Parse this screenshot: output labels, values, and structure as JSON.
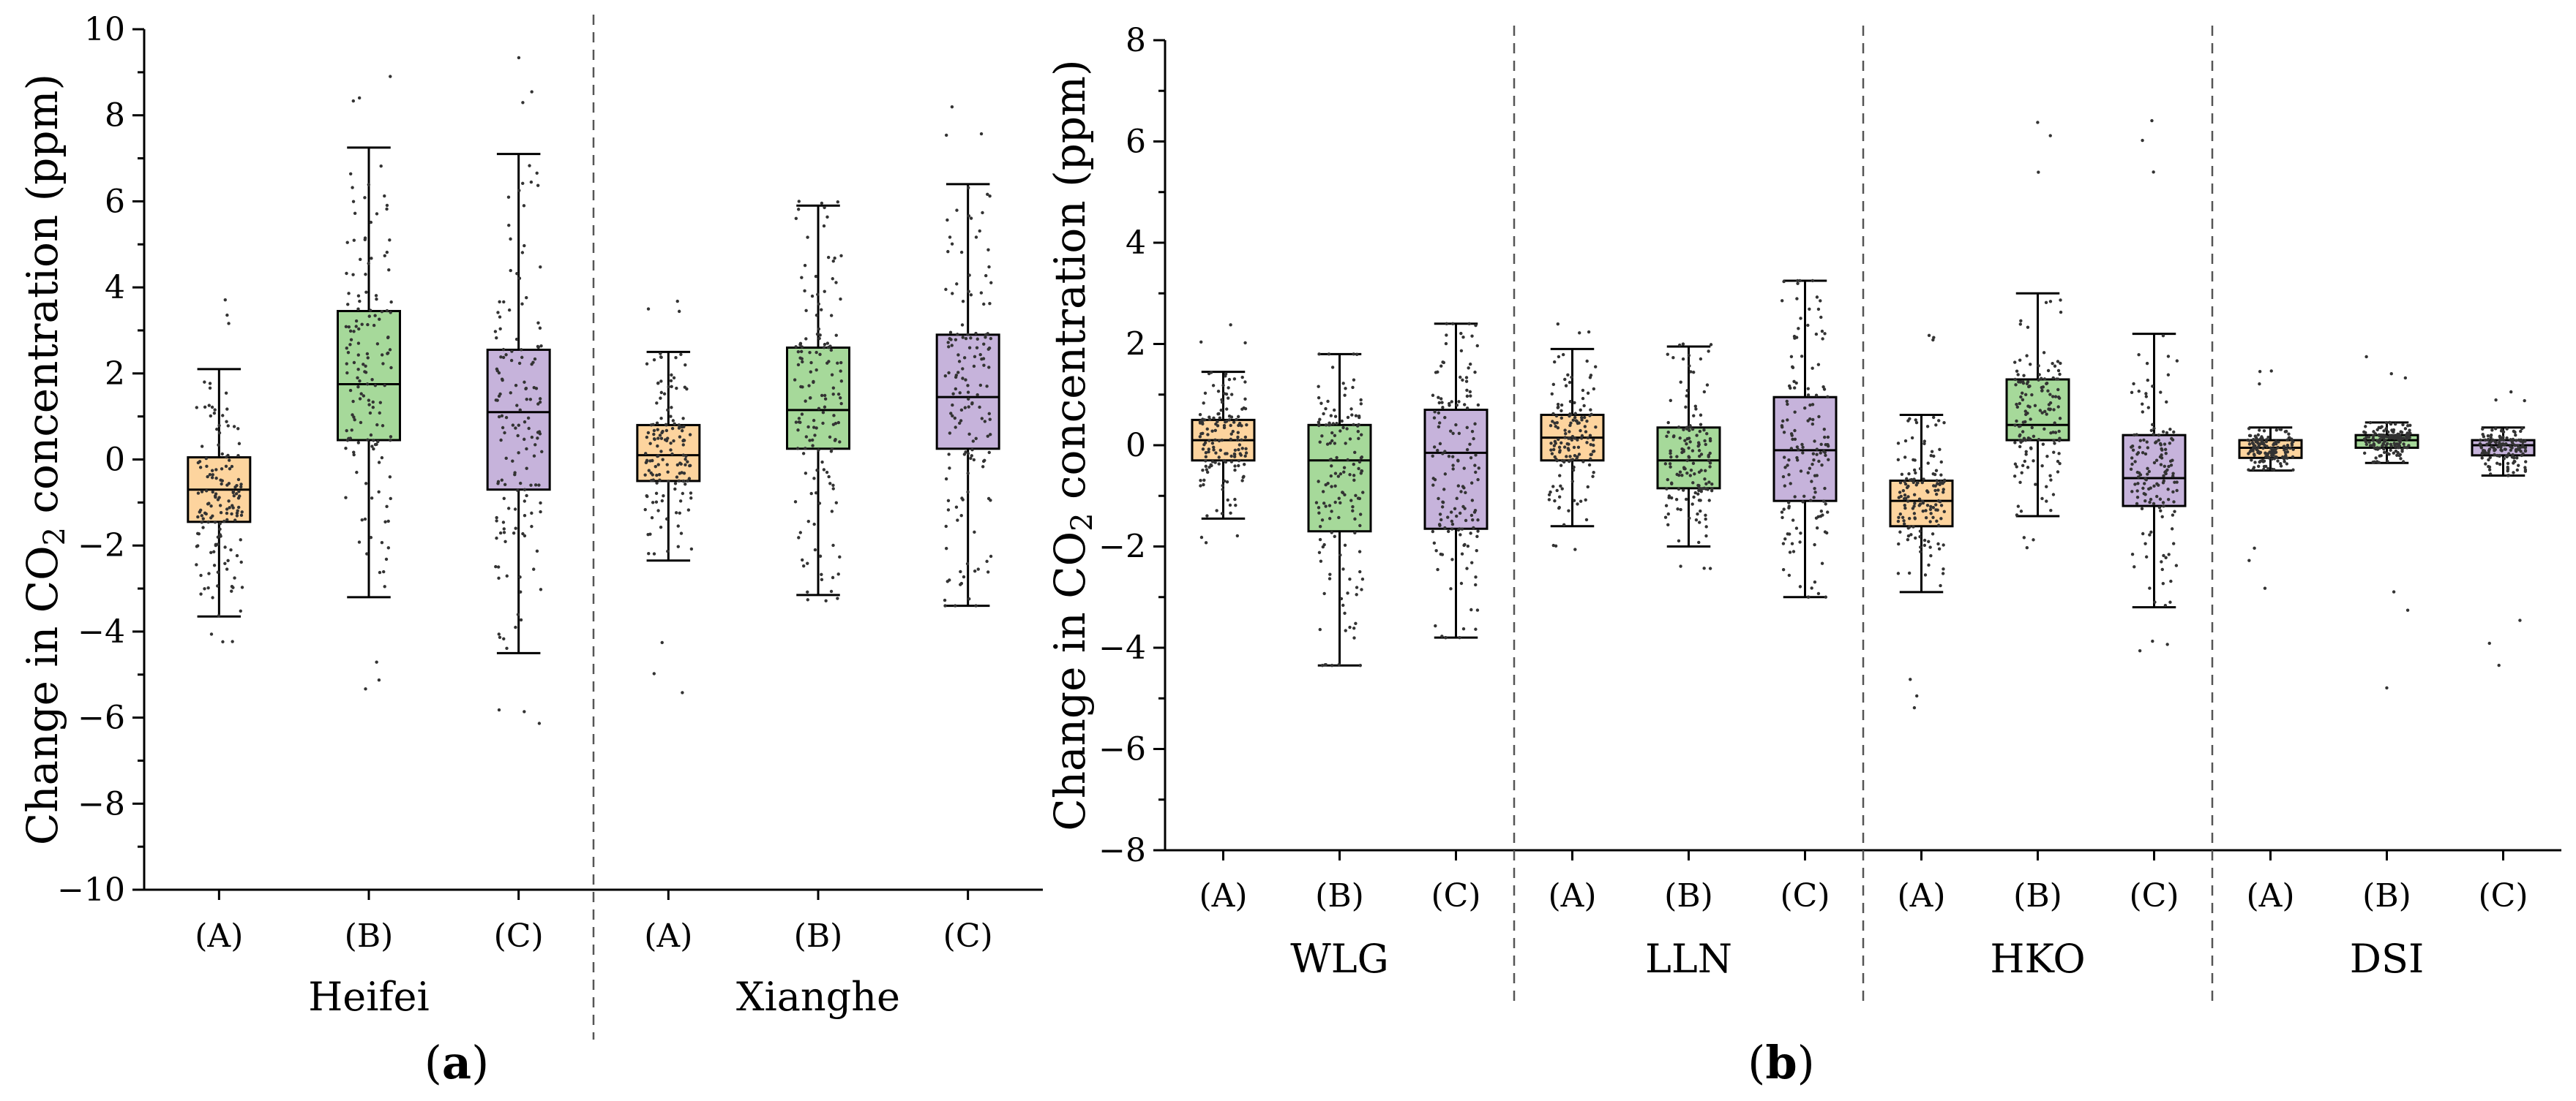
{
  "colors": {
    "A": "#fdd49e",
    "B": "#a6d99a",
    "C": "#c6b3db",
    "outline": "#000000",
    "divider": "#555555",
    "points": "#333333"
  },
  "chart_data": [
    {
      "type": "box",
      "panel_label": "(a)",
      "panel_letter": "a",
      "ylabel": "Change in CO₂ concentration (ppm)",
      "ylabel_parts": {
        "pre": "Change in CO",
        "sub": "2",
        "post": " concentration (ppm)"
      },
      "ylim": [
        -10,
        10
      ],
      "yticks": [
        -10,
        -8,
        -6,
        -4,
        -2,
        0,
        2,
        4,
        6,
        8,
        10
      ],
      "ytick_labels": [
        "−10",
        "−8",
        "−6",
        "−4",
        "−2",
        "0",
        "2",
        "4",
        "6",
        "8",
        "10"
      ],
      "categories": [
        "(A)",
        "(B)",
        "(C)"
      ],
      "groups": [
        {
          "name": "Heifei",
          "boxes": [
            {
              "category": "(A)",
              "q1": -1.45,
              "median": -0.7,
              "q3": 0.05,
              "whisker_low": -3.65,
              "whisker_high": 2.1,
              "min": -4.3,
              "max": 4.0
            },
            {
              "category": "(B)",
              "q1": 0.45,
              "median": 1.75,
              "q3": 3.45,
              "whisker_low": -3.2,
              "whisker_high": 7.25,
              "min": -5.6,
              "max": 9.1
            },
            {
              "category": "(C)",
              "q1": -0.7,
              "median": 1.1,
              "q3": 2.55,
              "whisker_low": -4.5,
              "whisker_high": 7.1,
              "min": -6.4,
              "max": 9.4
            }
          ]
        },
        {
          "name": "Xianghe",
          "boxes": [
            {
              "category": "(A)",
              "q1": -0.5,
              "median": 0.1,
              "q3": 0.8,
              "whisker_low": -2.35,
              "whisker_high": 2.5,
              "min": -5.7,
              "max": 4.2
            },
            {
              "category": "(B)",
              "q1": 0.25,
              "median": 1.15,
              "q3": 2.6,
              "whisker_low": -3.15,
              "whisker_high": 5.9,
              "min": -3.3,
              "max": 6.0
            },
            {
              "category": "(C)",
              "q1": 0.25,
              "median": 1.45,
              "q3": 2.9,
              "whisker_low": -3.4,
              "whisker_high": 6.4,
              "min": -3.4,
              "max": 8.3
            }
          ]
        }
      ]
    },
    {
      "type": "box",
      "panel_label": "(b)",
      "panel_letter": "b",
      "ylabel": "Change in CO₂ concentration (ppm)",
      "ylabel_parts": {
        "pre": "Change in CO",
        "sub": "2",
        "post": " concentration (ppm)"
      },
      "ylim": [
        -8,
        8
      ],
      "yticks": [
        -8,
        -6,
        -4,
        -2,
        0,
        2,
        4,
        6,
        8
      ],
      "ytick_labels": [
        "−8",
        "−6",
        "−4",
        "−2",
        "0",
        "2",
        "4",
        "6",
        "8"
      ],
      "categories": [
        "(A)",
        "(B)",
        "(C)"
      ],
      "groups": [
        {
          "name": "WLG",
          "boxes": [
            {
              "category": "(A)",
              "q1": -0.3,
              "median": 0.1,
              "q3": 0.5,
              "whisker_low": -1.45,
              "whisker_high": 1.45,
              "min": -2.1,
              "max": 2.5
            },
            {
              "category": "(B)",
              "q1": -1.7,
              "median": -0.3,
              "q3": 0.4,
              "whisker_low": -4.35,
              "whisker_high": 1.8,
              "min": -4.35,
              "max": 1.8
            },
            {
              "category": "(C)",
              "q1": -1.65,
              "median": -0.15,
              "q3": 0.7,
              "whisker_low": -3.8,
              "whisker_high": 2.4,
              "min": -3.8,
              "max": 2.4
            }
          ]
        },
        {
          "name": "LLN",
          "boxes": [
            {
              "category": "(A)",
              "q1": -0.3,
              "median": 0.15,
              "q3": 0.6,
              "whisker_low": -1.6,
              "whisker_high": 1.9,
              "min": -2.3,
              "max": 2.4
            },
            {
              "category": "(B)",
              "q1": -0.85,
              "median": -0.3,
              "q3": 0.35,
              "whisker_low": -2.0,
              "whisker_high": 1.95,
              "min": -2.7,
              "max": 2.0
            },
            {
              "category": "(C)",
              "q1": -1.1,
              "median": -0.1,
              "q3": 0.95,
              "whisker_low": -3.0,
              "whisker_high": 3.25,
              "min": -3.0,
              "max": 3.25
            }
          ]
        },
        {
          "name": "HKO",
          "boxes": [
            {
              "category": "(A)",
              "q1": -1.6,
              "median": -1.1,
              "q3": -0.7,
              "whisker_low": -2.9,
              "whisker_high": 0.6,
              "min": -5.4,
              "max": 2.4
            },
            {
              "category": "(B)",
              "q1": 0.1,
              "median": 0.4,
              "q3": 1.3,
              "whisker_low": -1.4,
              "whisker_high": 3.0,
              "min": -2.1,
              "max": 6.8
            },
            {
              "category": "(C)",
              "q1": -1.2,
              "median": -0.65,
              "q3": 0.2,
              "whisker_low": -3.2,
              "whisker_high": 2.2,
              "min": -4.1,
              "max": 6.6
            }
          ]
        },
        {
          "name": "DSI",
          "boxes": [
            {
              "category": "(A)",
              "q1": -0.25,
              "median": -0.05,
              "q3": 0.1,
              "whisker_low": -0.5,
              "whisker_high": 0.35,
              "min": -2.9,
              "max": 1.5
            },
            {
              "category": "(B)",
              "q1": -0.05,
              "median": 0.1,
              "q3": 0.2,
              "whisker_low": -0.35,
              "whisker_high": 0.45,
              "min": -4.8,
              "max": 1.8
            },
            {
              "category": "(C)",
              "q1": -0.2,
              "median": 0.0,
              "q3": 0.1,
              "whisker_low": -0.6,
              "whisker_high": 0.35,
              "min": -5.0,
              "max": 1.3
            }
          ]
        }
      ]
    }
  ]
}
